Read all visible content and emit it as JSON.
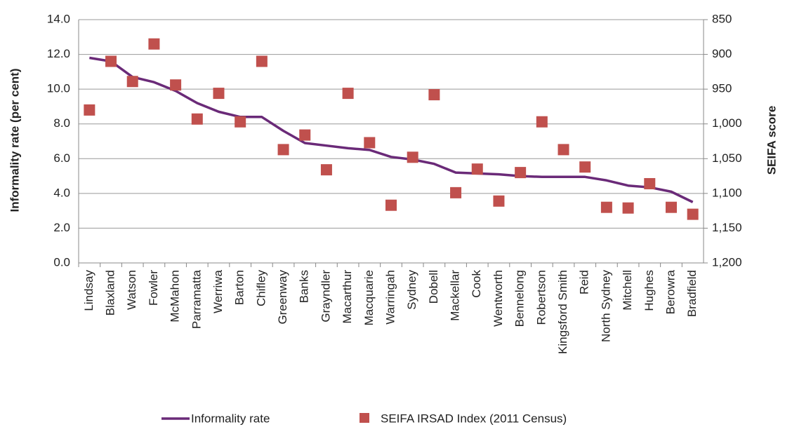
{
  "chart_data": {
    "type": "combo",
    "y_label": "Informality  rate (per cent)",
    "y2_label": "SEIFA score",
    "categories": [
      "Lindsay",
      "Blaxland",
      "Watson",
      "Fowler",
      "McMahon",
      "Parramatta",
      "Werriwa",
      "Barton",
      "Chifley",
      "Greenway",
      "Banks",
      "Grayndler",
      "Macarthur",
      "Macquarie",
      "Warringah",
      "Sydney",
      "Dobell",
      "Mackellar",
      "Cook",
      "Wentworth",
      "Bennelong",
      "Robertson",
      "Kingsford Smith",
      "Reid",
      "North Sydney",
      "Mitchell",
      "Hughes",
      "Berowra",
      "Bradfield"
    ],
    "series": [
      {
        "name": "Informality rate",
        "type": "line",
        "color": "#6a2a78",
        "values": [
          11.8,
          11.6,
          10.7,
          10.4,
          9.9,
          9.2,
          8.7,
          8.4,
          8.4,
          7.6,
          6.9,
          6.75,
          6.6,
          6.5,
          6.1,
          5.95,
          5.7,
          5.2,
          5.15,
          5.1,
          5.0,
          4.95,
          4.95,
          4.95,
          4.75,
          4.45,
          4.35,
          4.1,
          3.5
        ]
      },
      {
        "name": "SEIFA IRSAD Index (2011 Census)",
        "type": "scatter",
        "axis": "y2",
        "color": "#c0504d",
        "values": [
          980,
          910,
          939,
          885,
          944,
          993,
          956,
          997,
          910,
          1037,
          1016,
          1066,
          956,
          1027,
          1117,
          1048,
          958,
          1099,
          1065,
          1111,
          1070,
          997,
          1037,
          1062,
          1120,
          1121,
          1086,
          1120,
          1130
        ]
      }
    ],
    "ylim": [
      0,
      14
    ],
    "yticks": [
      {
        "value": 0,
        "label": "0.0"
      },
      {
        "value": 2,
        "label": "2.0"
      },
      {
        "value": 4,
        "label": "4.0"
      },
      {
        "value": 6,
        "label": "6.0"
      },
      {
        "value": 8,
        "label": "8.0"
      },
      {
        "value": 10,
        "label": "10.0"
      },
      {
        "value": 12,
        "label": "12.0"
      },
      {
        "value": 14,
        "label": "14.0"
      }
    ],
    "y2lim": [
      1200,
      850
    ],
    "y2ticks": [
      850,
      900,
      950,
      {
        "value": 1000,
        "label": "1,000"
      },
      {
        "value": 1050,
        "label": "1,050"
      },
      {
        "value": 1100,
        "label": "1,100"
      },
      {
        "value": 1150,
        "label": "1,150"
      },
      {
        "value": 1200,
        "label": "1,200"
      }
    ],
    "grid": true
  }
}
